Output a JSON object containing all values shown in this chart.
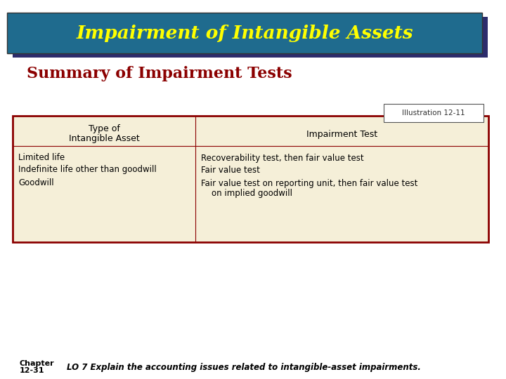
{
  "title": "Impairment of Intangible Assets",
  "title_color": "#FFFF00",
  "title_bg_color": "#1F6B8E",
  "title_shadow_color": "#2C2C6C",
  "subtitle": "Summary of Impairment Tests",
  "subtitle_color": "#8B0000",
  "illustration_label": "Illustration 12-11",
  "table_bg_color": "#F5EFD8",
  "table_border_color": "#8B0000",
  "col1_header_line1": "Type of",
  "col1_header_line2": "Intangible Asset",
  "col2_header": "Impairment Test",
  "row1_col1": "Limited life",
  "row1_col2": "Recoverability test, then fair value test",
  "row2_col1": "Indefinite life other than goodwill",
  "row2_col2": "Fair value test",
  "row3_col1": "Goodwill",
  "row3_col2a": "Fair value test on reporting unit, then fair value test",
  "row3_col2b": "    on implied goodwill",
  "footer_chapter_line1": "Chapter",
  "footer_chapter_line2": "12-31",
  "footer_text": "LO 7 Explain the accounting issues related to intangible-asset impairments.",
  "footer_color": "#000000",
  "bg_color": "#FFFFFF"
}
